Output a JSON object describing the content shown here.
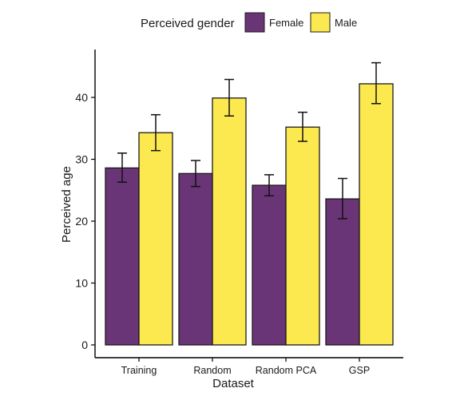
{
  "chart_data": {
    "type": "bar",
    "title": "",
    "xlabel": "Dataset",
    "ylabel": "Perceived age",
    "categories": [
      "Training",
      "Random",
      "Random PCA",
      "GSP"
    ],
    "series": [
      {
        "name": "Female",
        "color": "#6a3577",
        "values": [
          28.6,
          27.7,
          25.8,
          23.6
        ],
        "error_low": [
          26.3,
          25.6,
          24.1,
          20.4
        ],
        "error_high": [
          31.0,
          29.8,
          27.5,
          26.9
        ]
      },
      {
        "name": "Male",
        "color": "#fce94f",
        "values": [
          34.3,
          39.9,
          35.2,
          42.2
        ],
        "error_low": [
          31.4,
          37.0,
          32.9,
          39.0
        ],
        "error_high": [
          37.2,
          42.9,
          37.6,
          45.6
        ]
      }
    ],
    "legend": {
      "title": "Perceived gender",
      "placement": "top"
    },
    "yticks": [
      0,
      10,
      20,
      30,
      40
    ],
    "ylim": [
      0,
      47
    ],
    "grid": false
  }
}
